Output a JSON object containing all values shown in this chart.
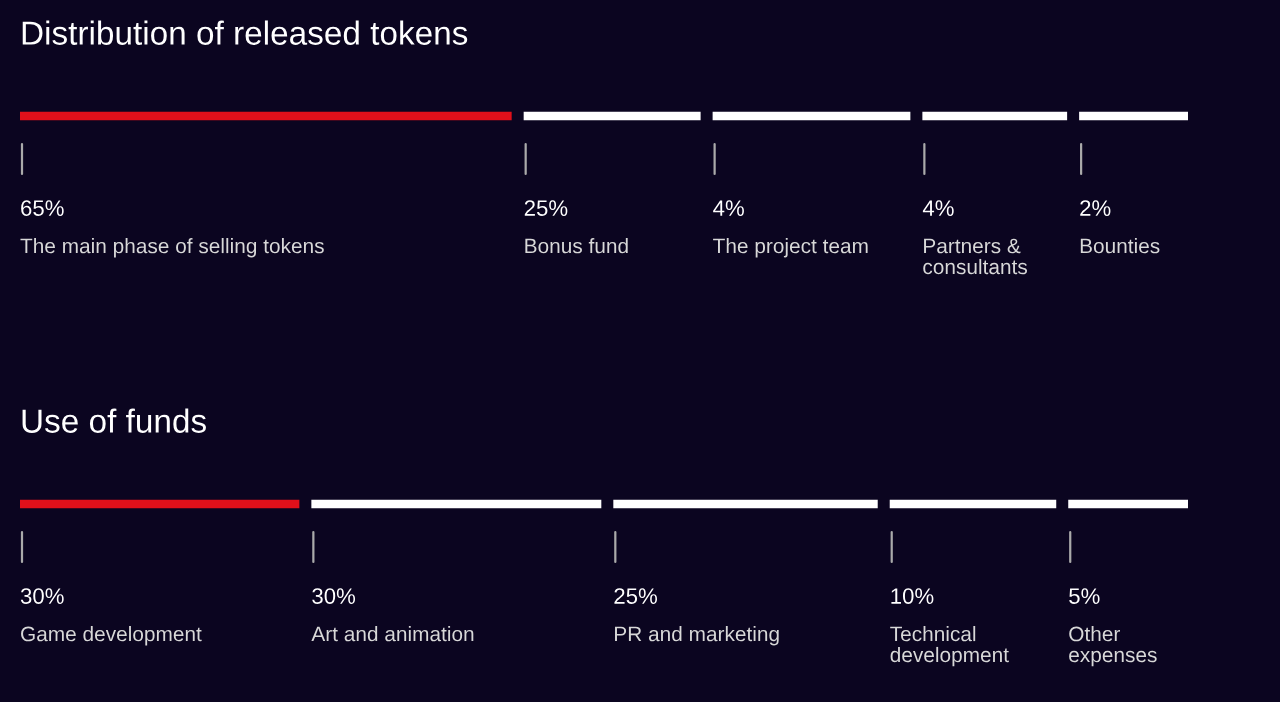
{
  "chart_data": [
    {
      "type": "other",
      "title": "Distribution of released tokens",
      "categories": [
        "The main phase of selling tokens",
        "Bonus fund",
        "The project team",
        "Partners &\nconsultants",
        "Bounties"
      ],
      "values": [
        65,
        25,
        4,
        4,
        2
      ],
      "value_labels": [
        "65%",
        "25%",
        "4%",
        "4%",
        "2%"
      ],
      "colors": [
        "#e0101a",
        "#ffffff",
        "#ffffff",
        "#ffffff",
        "#ffffff"
      ]
    },
    {
      "type": "other",
      "title": "Use of funds",
      "categories": [
        "Game development",
        "Art and animation",
        "PR and marketing",
        "Technical\ndevelopment",
        "Other\nexpenses"
      ],
      "values": [
        30,
        30,
        25,
        10,
        5
      ],
      "value_labels": [
        "30%",
        "30%",
        "25%",
        "10%",
        "5%"
      ],
      "colors": [
        "#e0101a",
        "#ffffff",
        "#ffffff",
        "#ffffff",
        "#ffffff"
      ]
    }
  ]
}
